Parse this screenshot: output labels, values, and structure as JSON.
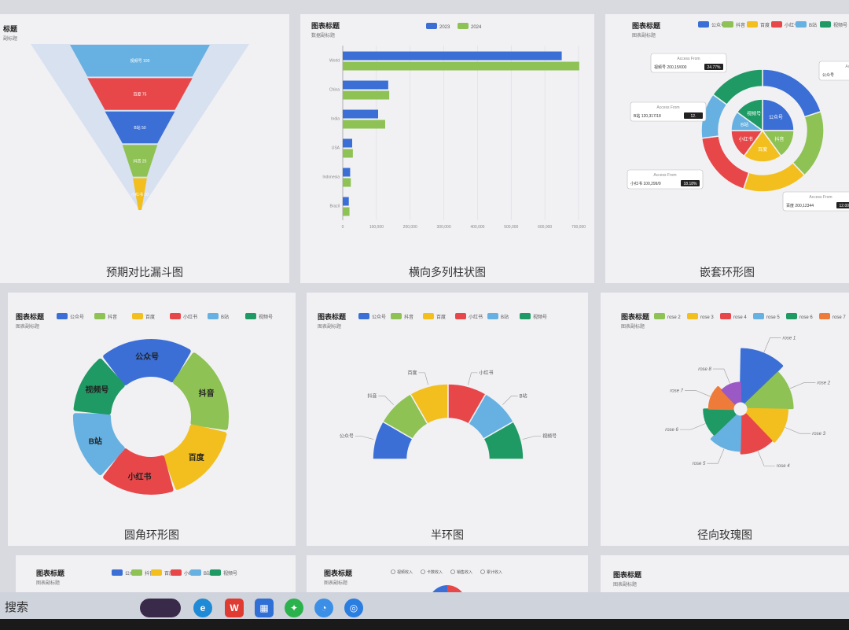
{
  "captions": [
    "预期对比漏斗图",
    "横向多列柱状图",
    "嵌套环形图",
    "圆角环形图",
    "半环图",
    "径向玫瑰图"
  ],
  "platforms": [
    "公众号",
    "抖音",
    "百度",
    "小红书",
    "B站",
    "视频号"
  ],
  "colors": {
    "blue": "#3b6fd6",
    "green": "#8ec254",
    "yellow": "#f2bf1e",
    "red": "#e8474a",
    "skyblue": "#66b1e2",
    "darkgreen": "#1f9a64",
    "orange": "#ef7b3a",
    "purple": "#9b59c6"
  },
  "chart_data": [
    {
      "type": "funnel",
      "title": "标题",
      "subtitle": "副标题",
      "stages": [
        {
          "label": "视频号",
          "value": 100
        },
        {
          "label": "百度",
          "value": 75
        },
        {
          "label": "B站",
          "value": 50
        },
        {
          "label": "抖音",
          "value": 25
        },
        {
          "label": "小红书",
          "value": 10
        }
      ]
    },
    {
      "type": "bar",
      "orientation": "horizontal",
      "title": "图表标题",
      "subtitle": "数据副标题",
      "categories": [
        "World",
        "China",
        "India",
        "USA",
        "Indonesia",
        "Brazil"
      ],
      "series": [
        {
          "name": "2023",
          "values": [
            650000,
            135000,
            105000,
            28000,
            22000,
            18000
          ]
        },
        {
          "name": "2024",
          "values": [
            702000,
            138000,
            126000,
            30000,
            24000,
            20000
          ]
        }
      ],
      "xticks": [
        "0",
        "100,000",
        "200,000",
        "300,000",
        "400,000",
        "500,000",
        "600,000",
        "700,000"
      ],
      "xlim": [
        0,
        700000
      ]
    },
    {
      "type": "pie",
      "variant": "nested-donut",
      "title": "图表标题",
      "subtitle": "图表副标题",
      "legend": [
        "公众号",
        "抖音",
        "百度",
        "小红书",
        "B站",
        "视频号"
      ],
      "inner": [
        {
          "label": "公众号",
          "value": 25
        },
        {
          "label": "抖音",
          "value": 15
        },
        {
          "label": "百度",
          "value": 20
        },
        {
          "label": "小红书",
          "value": 15
        },
        {
          "label": "B站",
          "value": 10
        },
        {
          "label": "视频号",
          "value": 15
        }
      ],
      "outer": [
        {
          "label": "公众号",
          "value": 20
        },
        {
          "label": "抖音",
          "value": 18
        },
        {
          "label": "百度",
          "value": 17
        },
        {
          "label": "小红书",
          "value": 18
        },
        {
          "label": "B站",
          "value": 12
        },
        {
          "label": "视频号",
          "value": 15
        }
      ],
      "tooltip_title": "Access From",
      "tooltips": [
        {
          "name": "视频号",
          "text": "视频号 200,15/000",
          "pct": "24.77%"
        },
        {
          "name": "B站",
          "text": "B站 120,317/18",
          "pct": "12."
        },
        {
          "name": "小红书",
          "text": "小红书 100,299/9",
          "pct": "18.18%"
        },
        {
          "name": "百度",
          "text": "百度 200,12344",
          "pct": "12.00%"
        },
        {
          "name": "公众号",
          "text": "公众号",
          "pct": ""
        }
      ]
    },
    {
      "type": "pie",
      "variant": "rounded-donut",
      "title": "图表标题",
      "subtitle": "图表副标题",
      "legend": [
        "公众号",
        "抖音",
        "百度",
        "小红书",
        "B站",
        "视频号"
      ],
      "slices": [
        {
          "label": "公众号",
          "value": 20
        },
        {
          "label": "抖音",
          "value": 19
        },
        {
          "label": "百度",
          "value": 17
        },
        {
          "label": "小红书",
          "value": 16
        },
        {
          "label": "B站",
          "value": 15
        },
        {
          "label": "视频号",
          "value": 13
        }
      ]
    },
    {
      "type": "pie",
      "variant": "half-donut",
      "title": "图表标题",
      "subtitle": "图表副标题",
      "legend": [
        "公众号",
        "抖音",
        "百度",
        "小红书",
        "B站",
        "视频号"
      ],
      "slices": [
        {
          "label": "公众号",
          "value": 1
        },
        {
          "label": "抖音",
          "value": 1
        },
        {
          "label": "百度",
          "value": 1
        },
        {
          "label": "小红书",
          "value": 1
        },
        {
          "label": "B站",
          "value": 1
        },
        {
          "label": "视频号",
          "value": 1
        }
      ]
    },
    {
      "type": "pie",
      "variant": "rose",
      "title": "图表标题",
      "subtitle": "图表副标题",
      "legend": [
        "rose 2",
        "rose 3",
        "rose 4",
        "rose 5",
        "rose 6",
        "rose 7"
      ],
      "slices": [
        {
          "label": "rose 1",
          "value": 40
        },
        {
          "label": "rose 2",
          "value": 34
        },
        {
          "label": "rose 3",
          "value": 30
        },
        {
          "label": "rose 4",
          "value": 28
        },
        {
          "label": "rose 5",
          "value": 26
        },
        {
          "label": "rose 6",
          "value": 22
        },
        {
          "label": "rose 7",
          "value": 18
        },
        {
          "label": "rose 8",
          "value": 14
        }
      ]
    }
  ],
  "bottom_row": [
    {
      "title": "图表标题",
      "subtitle": "图表副标题"
    },
    {
      "title": "图表标题",
      "subtitle": "图表副标题",
      "legend": [
        "视频收入",
        "卡数收入",
        "销售收入",
        "累计收入"
      ]
    },
    {
      "title": "图表标题",
      "subtitle": "图表副标题"
    }
  ],
  "taskbar": {
    "search": "搜索"
  }
}
